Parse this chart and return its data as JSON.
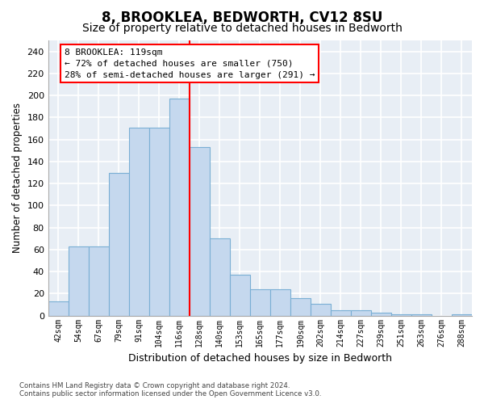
{
  "title": "8, BROOKLEA, BEDWORTH, CV12 8SU",
  "subtitle": "Size of property relative to detached houses in Bedworth",
  "xlabel": "Distribution of detached houses by size in Bedworth",
  "ylabel": "Number of detached properties",
  "categories": [
    "42sqm",
    "54sqm",
    "67sqm",
    "79sqm",
    "91sqm",
    "104sqm",
    "116sqm",
    "128sqm",
    "140sqm",
    "153sqm",
    "165sqm",
    "177sqm",
    "190sqm",
    "202sqm",
    "214sqm",
    "227sqm",
    "239sqm",
    "251sqm",
    "263sqm",
    "276sqm",
    "288sqm"
  ],
  "values": [
    13,
    63,
    63,
    130,
    171,
    171,
    197,
    153,
    70,
    37,
    24,
    24,
    16,
    11,
    5,
    5,
    3,
    1,
    1,
    0,
    1
  ],
  "bar_color": "#c5d8ee",
  "bar_edge_color": "#7aafd4",
  "vline_color": "red",
  "vline_x": 6.5,
  "annotation_line1": "8 BROOKLEA: 119sqm",
  "annotation_line2": "← 72% of detached houses are smaller (750)",
  "annotation_line3": "28% of semi-detached houses are larger (291) →",
  "ylim": [
    0,
    250
  ],
  "yticks": [
    0,
    20,
    40,
    60,
    80,
    100,
    120,
    140,
    160,
    180,
    200,
    220,
    240
  ],
  "background_color": "#e8eef5",
  "grid_color": "#ffffff",
  "footnote": "Contains HM Land Registry data © Crown copyright and database right 2024.\nContains public sector information licensed under the Open Government Licence v3.0.",
  "title_fontsize": 12,
  "subtitle_fontsize": 10,
  "xlabel_fontsize": 9,
  "ylabel_fontsize": 8.5,
  "annot_fontsize": 8
}
